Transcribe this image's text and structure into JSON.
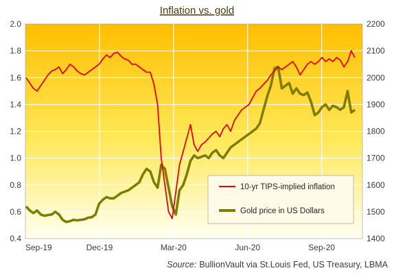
{
  "chart_data": {
    "type": "line",
    "title": "Inflation vs. gold",
    "source_label": "Source:",
    "source_text": "BullionVault via St.Louis Fed, US Treasury, LBMA",
    "x_ticks": [
      "Sep-19",
      "Dec-19",
      "Mar-20",
      "Jun-20",
      "Sep-20"
    ],
    "y_left": {
      "ticks": [
        "0.4",
        "0.6",
        "0.8",
        "1.0",
        "1.2",
        "1.4",
        "1.6",
        "1.8",
        "2.0"
      ],
      "range": [
        0.4,
        2.0
      ]
    },
    "y_right": {
      "ticks": [
        "1400",
        "1500",
        "1600",
        "1700",
        "1800",
        "1900",
        "2000",
        "2100",
        "2200"
      ],
      "range": [
        1400,
        2200
      ]
    },
    "grid": true,
    "legend_position": "lower-right",
    "series": [
      {
        "name": "10-yr TIPS-implied inflation",
        "axis": "left",
        "color": "#e8000d",
        "values": [
          1.6,
          1.56,
          1.52,
          1.5,
          1.54,
          1.58,
          1.62,
          1.65,
          1.66,
          1.68,
          1.63,
          1.66,
          1.7,
          1.68,
          1.65,
          1.63,
          1.62,
          1.64,
          1.66,
          1.68,
          1.7,
          1.74,
          1.77,
          1.75,
          1.78,
          1.79,
          1.76,
          1.74,
          1.73,
          1.7,
          1.7,
          1.68,
          1.66,
          1.64,
          1.64,
          1.55,
          1.4,
          1.0,
          0.8,
          0.6,
          0.55,
          0.75,
          0.95,
          1.05,
          1.15,
          1.25,
          1.1,
          1.05,
          1.1,
          1.12,
          1.15,
          1.18,
          1.2,
          1.16,
          1.22,
          1.25,
          1.2,
          1.28,
          1.32,
          1.36,
          1.38,
          1.4,
          1.45,
          1.5,
          1.52,
          1.55,
          1.58,
          1.62,
          1.65,
          1.68,
          1.66,
          1.68,
          1.7,
          1.72,
          1.68,
          1.62,
          1.66,
          1.7,
          1.72,
          1.7,
          1.72,
          1.75,
          1.72,
          1.74,
          1.72,
          1.75,
          1.73,
          1.68,
          1.72,
          1.8,
          1.75
        ]
      },
      {
        "name": "Gold price in US Dollars",
        "axis": "right",
        "color": "#7d7d00",
        "values": [
          1520,
          1505,
          1495,
          1505,
          1490,
          1485,
          1488,
          1490,
          1500,
          1490,
          1470,
          1462,
          1465,
          1470,
          1468,
          1470,
          1472,
          1478,
          1480,
          1490,
          1530,
          1545,
          1555,
          1550,
          1550,
          1560,
          1570,
          1575,
          1580,
          1590,
          1600,
          1610,
          1640,
          1660,
          1650,
          1610,
          1590,
          1675,
          1660,
          1590,
          1520,
          1490,
          1580,
          1600,
          1640,
          1690,
          1710,
          1700,
          1705,
          1710,
          1700,
          1720,
          1730,
          1710,
          1700,
          1720,
          1740,
          1750,
          1760,
          1770,
          1780,
          1790,
          1800,
          1810,
          1830,
          1880,
          1930,
          1970,
          2035,
          2040,
          1960,
          1970,
          1980,
          1940,
          1960,
          1940,
          1935,
          1945,
          1910,
          1860,
          1870,
          1890,
          1900,
          1880,
          1895,
          1890,
          1880,
          1890,
          1950,
          1870,
          1880
        ]
      }
    ]
  }
}
